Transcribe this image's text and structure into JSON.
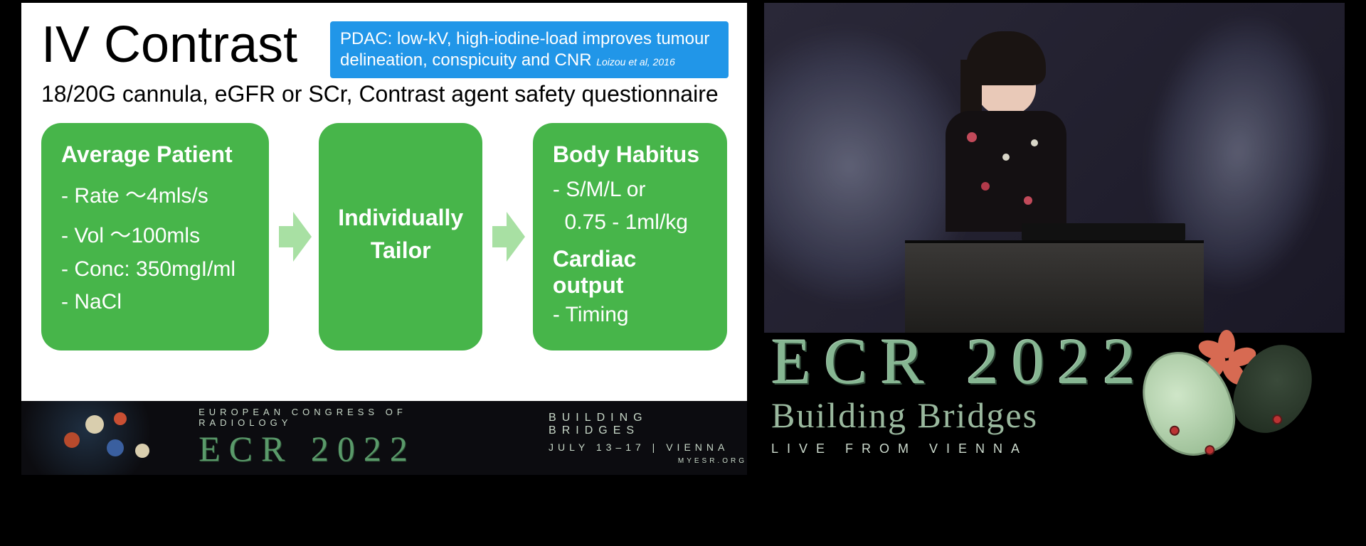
{
  "slide": {
    "title": "IV Contrast",
    "callout": "PDAC: low-kV, high-iodine-load improves tumour delineation, conspicuity and CNR",
    "callout_citation": "Loizou et al, 2016",
    "subtitle": "18/20G cannula, eGFR or SCr, Contrast agent safety questionnaire",
    "card1": {
      "title": "Average Patient",
      "line1": "- Rate ～4mls/s",
      "line2": "- Vol ～100mls",
      "line3": "- Conc: 350mgI/ml",
      "line4": "- NaCl"
    },
    "card2": {
      "title_l1": "Individually",
      "title_l2": "Tailor"
    },
    "card3": {
      "title1": "Body Habitus",
      "line1": "- S/M/L or",
      "line2": "  0.75 - 1ml/kg",
      "title2": "Cardiac output",
      "line3": "- Timing"
    },
    "colors": {
      "card_bg": "#47b54a",
      "arrow": "#a8e0a3",
      "callout_bg": "#2196e8",
      "slide_bg": "#ffffff",
      "page_bg": "#000000"
    }
  },
  "banner": {
    "org": "EUROPEAN CONGRESS OF RADIOLOGY",
    "logo": "ECR 2022",
    "tagline": "BUILDING BRIDGES",
    "dates": "JULY 13–17  |  VIENNA",
    "url": "MYESR.ORG"
  },
  "branding": {
    "logo": "ECR 2022",
    "script": "Building Bridges",
    "subline": "LIVE  FROM  VIENNA"
  }
}
